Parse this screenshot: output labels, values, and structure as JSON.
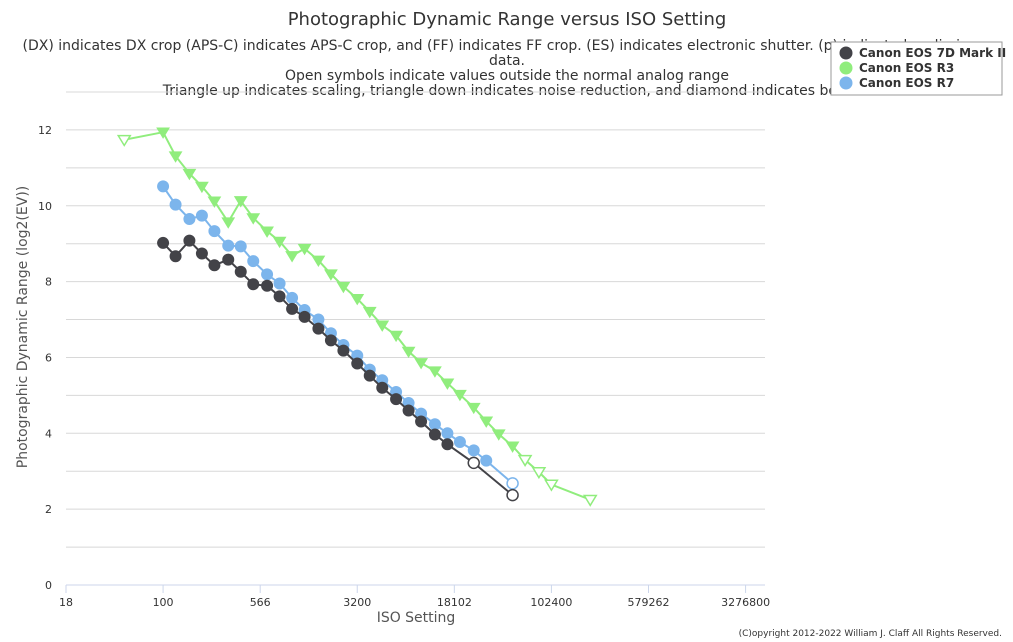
{
  "chart_data": {
    "type": "line",
    "title": "Photographic Dynamic Range versus ISO Setting",
    "subtitle_lines": [
      "(DX) indicates DX crop (APS-C) indicates APS-C crop, and (FF) indicates FF crop. (ES) indicates electronic shutter. (p) indicated preliminary",
      "data.",
      "Open symbols indicate values outside the normal analog range",
      "Triangle up indicates scaling, triangle down indicates noise reduction, and diamond indicates both"
    ],
    "xlabel": "ISO Setting",
    "ylabel": "Photographic Dynamic Range (log2(EV))",
    "x_scale": "log",
    "xlim": [
      17.68,
      4634005
    ],
    "ylim": [
      0,
      13
    ],
    "x_ticks": [
      17.68,
      100,
      566,
      3200,
      18102,
      102400,
      579262,
      3276800
    ],
    "x_tick_labels": [
      "18",
      "100",
      "566",
      "3200",
      "18102",
      "102400",
      "579262",
      "3276800"
    ],
    "y_ticks": [
      0,
      2,
      4,
      6,
      8,
      10,
      12
    ],
    "grid": true,
    "legend_position": "top-right",
    "credit": "(C)opyright 2012-2022 William J. Claff All Rights Reserved.",
    "series": [
      {
        "name": "Canon EOS 7D Mark II",
        "color": "#434348",
        "marker": "circle",
        "x": [
          100,
          125,
          160,
          200,
          250,
          320,
          400,
          500,
          640,
          800,
          1000,
          1250,
          1600,
          2000,
          2500,
          3200,
          4000,
          5000,
          6400,
          8000,
          10000,
          12800,
          16000,
          25600,
          51200
        ],
        "y": [
          9.02,
          8.67,
          9.08,
          8.74,
          8.43,
          8.58,
          8.26,
          7.93,
          7.89,
          7.61,
          7.28,
          7.07,
          6.76,
          6.45,
          6.18,
          5.84,
          5.52,
          5.2,
          4.9,
          4.6,
          4.31,
          3.97,
          3.71,
          3.22,
          2.37
        ],
        "open_from_index": 23
      },
      {
        "name": "Canon EOS R3",
        "color": "#90ed7d",
        "marker": "triangle-down",
        "x": [
          50,
          100,
          125,
          160,
          200,
          250,
          320,
          400,
          500,
          640,
          800,
          1000,
          1250,
          1600,
          2000,
          2500,
          3200,
          4000,
          5000,
          6400,
          8000,
          10000,
          12800,
          16000,
          20000,
          25600,
          32000,
          40000,
          51200,
          64000,
          81920,
          102400,
          204800
        ],
        "y": [
          11.74,
          11.94,
          11.31,
          10.85,
          10.51,
          10.12,
          9.57,
          10.13,
          9.68,
          9.33,
          9.06,
          8.68,
          8.87,
          8.56,
          8.2,
          7.87,
          7.55,
          7.21,
          6.85,
          6.58,
          6.16,
          5.86,
          5.64,
          5.32,
          5.02,
          4.68,
          4.32,
          3.98,
          3.66,
          3.3,
          2.98,
          2.65,
          2.25
        ],
        "open_indices": [
          0,
          29,
          30,
          31,
          32
        ]
      },
      {
        "name": "Canon EOS R7",
        "color": "#7cb5ec",
        "marker": "circle",
        "x": [
          100,
          125,
          160,
          200,
          250,
          320,
          400,
          500,
          640,
          800,
          1000,
          1250,
          1600,
          2000,
          2500,
          3200,
          4000,
          5000,
          6400,
          8000,
          10000,
          12800,
          16000,
          20000,
          25600,
          32000,
          51200
        ],
        "y": [
          10.51,
          10.03,
          9.65,
          9.74,
          9.33,
          8.95,
          8.93,
          8.54,
          8.19,
          7.95,
          7.57,
          7.25,
          7.0,
          6.64,
          6.33,
          6.05,
          5.68,
          5.4,
          5.09,
          4.8,
          4.52,
          4.24,
          4.0,
          3.77,
          3.55,
          3.28,
          2.68
        ],
        "open_from_index": 26
      }
    ]
  }
}
